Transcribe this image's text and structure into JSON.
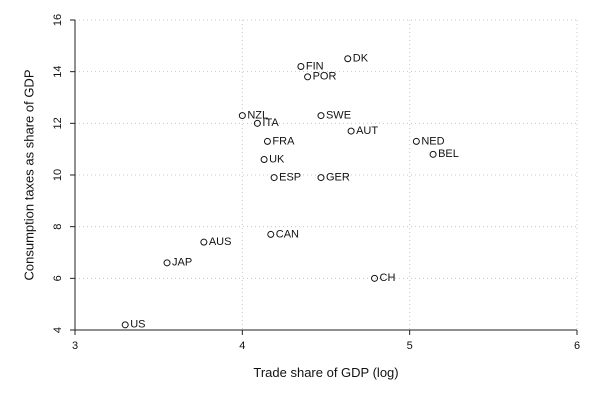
{
  "chart_data": {
    "type": "scatter",
    "title": "",
    "xlabel": "Trade share of GDP (log)",
    "ylabel": "Consumption taxes as share of GDP",
    "xlim": [
      3,
      6
    ],
    "ylim": [
      4,
      16
    ],
    "xticks": [
      3,
      4,
      5,
      6
    ],
    "yticks": [
      4,
      6,
      8,
      10,
      12,
      14,
      16
    ],
    "grid": true,
    "marker": "hollow-circle",
    "points": [
      {
        "label": "DK",
        "x": 4.63,
        "y": 14.5
      },
      {
        "label": "FIN",
        "x": 4.35,
        "y": 14.2
      },
      {
        "label": "POR",
        "x": 4.39,
        "y": 13.8
      },
      {
        "label": "NZL",
        "x": 4.0,
        "y": 12.3
      },
      {
        "label": "SWE",
        "x": 4.47,
        "y": 12.3
      },
      {
        "label": "ITA",
        "x": 4.09,
        "y": 12.0
      },
      {
        "label": "AUT",
        "x": 4.65,
        "y": 11.7
      },
      {
        "label": "NED",
        "x": 5.04,
        "y": 11.3
      },
      {
        "label": "FRA",
        "x": 4.15,
        "y": 11.3
      },
      {
        "label": "BEL",
        "x": 5.14,
        "y": 10.8
      },
      {
        "label": "UK",
        "x": 4.13,
        "y": 10.6
      },
      {
        "label": "ESP",
        "x": 4.19,
        "y": 9.9
      },
      {
        "label": "GER",
        "x": 4.47,
        "y": 9.9
      },
      {
        "label": "CAN",
        "x": 4.17,
        "y": 7.7
      },
      {
        "label": "AUS",
        "x": 3.77,
        "y": 7.4
      },
      {
        "label": "JAP",
        "x": 3.55,
        "y": 6.6
      },
      {
        "label": "CH",
        "x": 4.79,
        "y": 6.0
      },
      {
        "label": "US",
        "x": 3.3,
        "y": 4.2
      }
    ]
  }
}
